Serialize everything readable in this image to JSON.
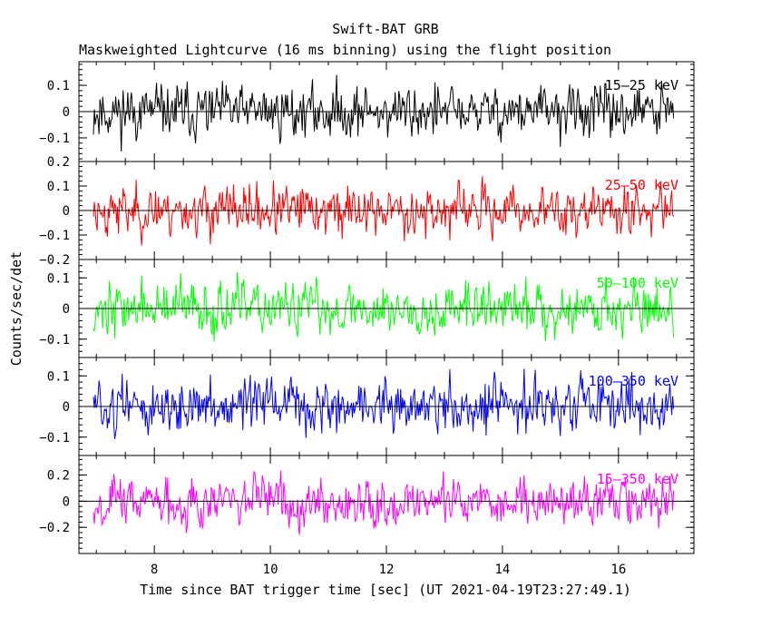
{
  "chart_data": {
    "type": "line",
    "title": "Swift-BAT GRB",
    "subtitle": "Maskweighted Lightcurve (16 ms binning) using the flight position",
    "xlabel": "Time since BAT trigger time [sec] (UT 2021-04-19T23:27:49.1)",
    "ylabel": "Counts/sec/det",
    "xlim": [
      6.7,
      17.3
    ],
    "x_ticks": [
      "8",
      "10",
      "12",
      "14",
      "16"
    ],
    "x_tick_values": [
      8,
      10,
      12,
      14,
      16
    ],
    "bin_width_sec": 0.016,
    "series_x_range": [
      6.95,
      16.95
    ],
    "panels": [
      {
        "name": "15-25 keV",
        "label": "15–25 keV",
        "color": "#000000",
        "ylim": [
          -0.19,
          0.19
        ],
        "y_ticks": [
          "0.1",
          "0",
          "−0.1"
        ],
        "y_tick_values": [
          0.1,
          0,
          -0.1
        ],
        "noise_amplitude": 0.065,
        "seed": 11
      },
      {
        "name": "25-50 keV",
        "label": "25–50 keV",
        "color": "#ff0000",
        "ylim": [
          -0.2,
          0.2
        ],
        "y_ticks": [
          "0.2",
          "0.1",
          "0",
          "−0.1",
          "−0.2"
        ],
        "y_tick_values": [
          0.2,
          0.1,
          0,
          -0.1,
          -0.2
        ],
        "noise_amplitude": 0.065,
        "seed": 23
      },
      {
        "name": "50-100 keV",
        "label": "50–100 keV",
        "color": "#00ff00",
        "ylim": [
          -0.16,
          0.16
        ],
        "y_ticks": [
          "0.1",
          "0",
          "−0.1"
        ],
        "y_tick_values": [
          0.1,
          0,
          -0.1
        ],
        "noise_amplitude": 0.055,
        "seed": 37
      },
      {
        "name": "100-350 keV",
        "label": "100–350 keV",
        "color": "#0000ff",
        "ylim": [
          -0.16,
          0.16
        ],
        "y_ticks": [
          "0.1",
          "0",
          "−0.1"
        ],
        "y_tick_values": [
          0.1,
          0,
          -0.1
        ],
        "noise_amplitude": 0.055,
        "seed": 51
      },
      {
        "name": "15-350 keV",
        "label": "15–350 keV",
        "color": "#ff00ff",
        "ylim": [
          -0.4,
          0.35
        ],
        "y_ticks": [
          "0.2",
          "0",
          "−0.2"
        ],
        "y_tick_values": [
          0.2,
          0,
          -0.2
        ],
        "noise_amplitude": 0.12,
        "seed": 67
      }
    ]
  }
}
